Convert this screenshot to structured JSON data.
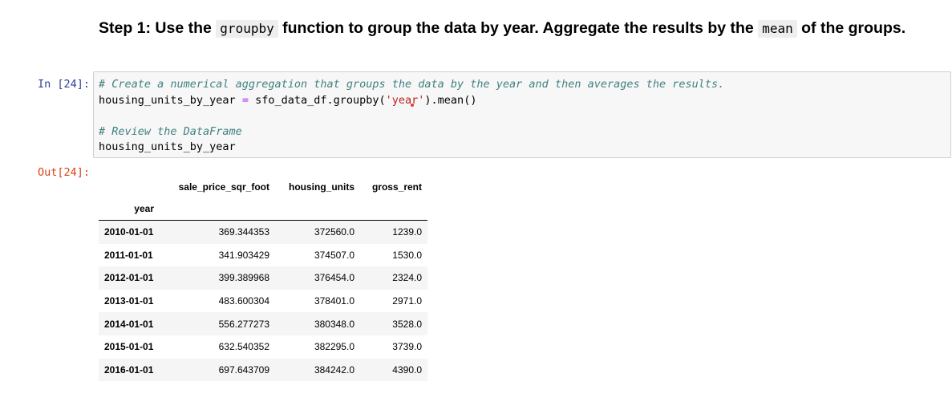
{
  "markdown": {
    "part1": "Step 1: Use the ",
    "code1": "groupby",
    "part2": " function to group the data by year. Aggregate the results by the ",
    "code2": "mean",
    "part3": " of the groups."
  },
  "input_prompt": "In [24]:",
  "output_prompt": "Out[24]:",
  "code": {
    "line1_comment": "# Create a numerical aggregation that groups the data by the year and then averages the results.",
    "line2_var": "housing_units_by_year ",
    "line2_op": "=",
    "line2_mid": " sfo_data_df.groupby(",
    "line2_str_a": "'yea",
    "line2_str_b": "r'",
    "line2_end": ").mean()",
    "line4_comment": "# Review the DataFrame",
    "line5": "housing_units_by_year"
  },
  "table": {
    "columns": [
      "sale_price_sqr_foot",
      "housing_units",
      "gross_rent"
    ],
    "index_name": "year",
    "rows": [
      {
        "year": "2010-01-01",
        "sale_price_sqr_foot": "369.344353",
        "housing_units": "372560.0",
        "gross_rent": "1239.0"
      },
      {
        "year": "2011-01-01",
        "sale_price_sqr_foot": "341.903429",
        "housing_units": "374507.0",
        "gross_rent": "1530.0"
      },
      {
        "year": "2012-01-01",
        "sale_price_sqr_foot": "399.389968",
        "housing_units": "376454.0",
        "gross_rent": "2324.0"
      },
      {
        "year": "2013-01-01",
        "sale_price_sqr_foot": "483.600304",
        "housing_units": "378401.0",
        "gross_rent": "2971.0"
      },
      {
        "year": "2014-01-01",
        "sale_price_sqr_foot": "556.277273",
        "housing_units": "380348.0",
        "gross_rent": "3528.0"
      },
      {
        "year": "2015-01-01",
        "sale_price_sqr_foot": "632.540352",
        "housing_units": "382295.0",
        "gross_rent": "3739.0"
      },
      {
        "year": "2016-01-01",
        "sale_price_sqr_foot": "697.643709",
        "housing_units": "384242.0",
        "gross_rent": "4390.0"
      }
    ]
  }
}
